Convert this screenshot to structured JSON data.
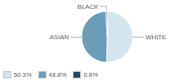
{
  "chart_data": {
    "type": "pie",
    "categories": [
      "WHITE",
      "ASIAN",
      "BLACK"
    ],
    "values": [
      50.3,
      48.8,
      0.8
    ],
    "value_labels": [
      "50.3%",
      "48.8%",
      "0.8%"
    ],
    "colors": [
      "#d4e5ef",
      "#6b9db8",
      "#1e4866"
    ],
    "legend": "lower left"
  }
}
